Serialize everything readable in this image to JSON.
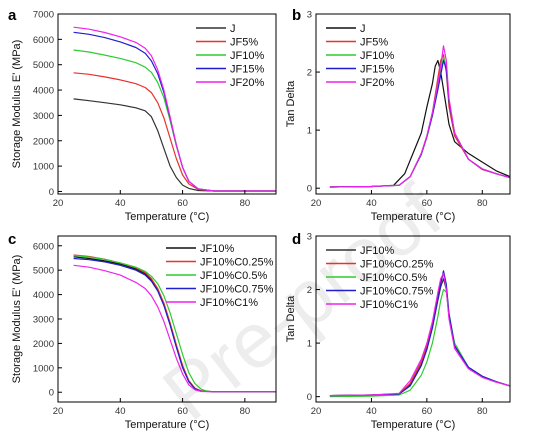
{
  "watermark": "Pre-proof",
  "chart_data": [
    {
      "type": "line",
      "panel": "a",
      "xlabel": "Temperature (°C)",
      "ylabel": "Storage Modulus E' (MPa)",
      "xlim": [
        20,
        90
      ],
      "ylim": [
        -100,
        7000
      ],
      "xticks": [
        20,
        40,
        60,
        80
      ],
      "yticks": [
        0,
        1000,
        2000,
        3000,
        4000,
        5000,
        6000,
        7000
      ],
      "ytick_labels": [
        "0",
        "1000",
        "2000",
        "3000",
        "4000",
        "5000",
        "6000",
        "7000"
      ],
      "legend_position": "top-right",
      "series": [
        {
          "name": "J",
          "color": "#333333",
          "x": [
            25,
            30,
            35,
            40,
            45,
            48,
            50,
            52,
            54,
            56,
            58,
            60,
            62,
            65,
            70,
            80,
            90
          ],
          "y": [
            3650,
            3580,
            3500,
            3420,
            3300,
            3180,
            2950,
            2400,
            1700,
            1000,
            550,
            250,
            120,
            40,
            20,
            20,
            20
          ]
        },
        {
          "name": "JF5%",
          "color": "#e8322a",
          "x": [
            25,
            30,
            35,
            40,
            45,
            48,
            50,
            52,
            54,
            56,
            58,
            60,
            62,
            65,
            70,
            80,
            90
          ],
          "y": [
            4680,
            4620,
            4520,
            4400,
            4250,
            4100,
            3900,
            3500,
            2900,
            2100,
            1300,
            650,
            300,
            80,
            20,
            20,
            20
          ]
        },
        {
          "name": "JF10%",
          "color": "#2ecc2e",
          "x": [
            25,
            30,
            35,
            40,
            45,
            48,
            50,
            52,
            54,
            56,
            58,
            60,
            62,
            65,
            70,
            80,
            90
          ],
          "y": [
            5580,
            5500,
            5380,
            5250,
            5080,
            4900,
            4700,
            4300,
            3700,
            2800,
            1800,
            950,
            400,
            100,
            20,
            20,
            20
          ]
        },
        {
          "name": "JF15%",
          "color": "#1f1fcc",
          "x": [
            25,
            30,
            35,
            40,
            45,
            48,
            50,
            52,
            54,
            56,
            58,
            60,
            62,
            65,
            70,
            80,
            90
          ],
          "y": [
            6280,
            6200,
            6070,
            5900,
            5680,
            5450,
            5150,
            4650,
            3900,
            2900,
            1850,
            950,
            400,
            100,
            20,
            20,
            20
          ]
        },
        {
          "name": "JF20%",
          "color": "#ee22ee",
          "x": [
            25,
            30,
            35,
            40,
            45,
            48,
            50,
            52,
            54,
            56,
            58,
            60,
            62,
            65,
            70,
            80,
            90
          ],
          "y": [
            6480,
            6400,
            6270,
            6100,
            5880,
            5650,
            5350,
            4800,
            4000,
            2950,
            1850,
            950,
            400,
            100,
            20,
            20,
            20
          ]
        }
      ]
    },
    {
      "type": "line",
      "panel": "b",
      "xlabel": "Temperature (°C)",
      "ylabel": "Tan Delta",
      "xlim": [
        20,
        90
      ],
      "ylim": [
        -0.1,
        3.0
      ],
      "xticks": [
        20,
        40,
        60,
        80
      ],
      "yticks": [
        0,
        1,
        2,
        3
      ],
      "ytick_labels": [
        "0",
        "1",
        "2",
        "3"
      ],
      "legend_position": "top-left",
      "series": [
        {
          "name": "J",
          "color": "#111111",
          "x": [
            25,
            40,
            48,
            52,
            55,
            58,
            60,
            62,
            63,
            64,
            65,
            66,
            68,
            70,
            75,
            80,
            85,
            90
          ],
          "y": [
            0.02,
            0.03,
            0.05,
            0.25,
            0.6,
            0.95,
            1.4,
            1.8,
            2.1,
            2.2,
            2.0,
            1.7,
            1.1,
            0.8,
            0.6,
            0.45,
            0.3,
            0.2
          ]
        },
        {
          "name": "JF5%",
          "color": "#e8322a",
          "x": [
            25,
            40,
            50,
            54,
            58,
            60,
            62,
            64,
            65,
            66,
            67,
            68,
            70,
            75,
            80,
            85,
            90
          ],
          "y": [
            0.02,
            0.03,
            0.05,
            0.2,
            0.6,
            0.9,
            1.3,
            1.9,
            2.2,
            2.3,
            2.0,
            1.4,
            0.9,
            0.5,
            0.32,
            0.25,
            0.18
          ]
        },
        {
          "name": "JF10%",
          "color": "#2ecc2e",
          "x": [
            25,
            40,
            50,
            54,
            58,
            60,
            62,
            64,
            65,
            66,
            67,
            68,
            70,
            75,
            80,
            85,
            90
          ],
          "y": [
            0.02,
            0.03,
            0.05,
            0.2,
            0.6,
            0.9,
            1.3,
            1.8,
            2.0,
            2.25,
            2.1,
            1.5,
            0.95,
            0.5,
            0.33,
            0.25,
            0.18
          ]
        },
        {
          "name": "JF15%",
          "color": "#1f1fcc",
          "x": [
            25,
            40,
            50,
            54,
            58,
            60,
            62,
            64,
            65,
            66,
            67,
            68,
            70,
            75,
            80,
            85,
            90
          ],
          "y": [
            0.02,
            0.03,
            0.05,
            0.2,
            0.58,
            0.88,
            1.25,
            1.7,
            1.95,
            2.2,
            2.05,
            1.5,
            0.95,
            0.5,
            0.33,
            0.25,
            0.18
          ]
        },
        {
          "name": "JF20%",
          "color": "#ee22ee",
          "x": [
            25,
            40,
            50,
            54,
            58,
            60,
            62,
            64,
            65,
            66,
            67,
            68,
            70,
            75,
            80,
            85,
            90
          ],
          "y": [
            0.02,
            0.03,
            0.05,
            0.2,
            0.6,
            0.9,
            1.3,
            1.8,
            2.1,
            2.45,
            2.2,
            1.55,
            0.95,
            0.5,
            0.33,
            0.25,
            0.18
          ]
        }
      ]
    },
    {
      "type": "line",
      "panel": "c",
      "xlabel": "Temperature (°C)",
      "ylabel": "Storage Modulus E' (MPa)",
      "xlim": [
        20,
        90
      ],
      "ylim": [
        -400,
        6400
      ],
      "xticks": [
        20,
        40,
        60,
        80
      ],
      "yticks": [
        0,
        1000,
        2000,
        3000,
        4000,
        5000,
        6000
      ],
      "ytick_labels": [
        "0",
        "1000",
        "2000",
        "3000",
        "4000",
        "5000",
        "6000"
      ],
      "legend_position": "top-right",
      "series": [
        {
          "name": "JF10%",
          "color": "#111111",
          "x": [
            25,
            30,
            35,
            40,
            45,
            48,
            50,
            52,
            54,
            56,
            58,
            60,
            62,
            64,
            66,
            70,
            80,
            90
          ],
          "y": [
            5550,
            5480,
            5380,
            5250,
            5050,
            4850,
            4600,
            4200,
            3600,
            2800,
            1900,
            1050,
            450,
            150,
            50,
            20,
            20,
            20
          ]
        },
        {
          "name": "JF10%C0.25%",
          "color": "#e8322a",
          "x": [
            25,
            30,
            35,
            40,
            45,
            48,
            50,
            52,
            54,
            56,
            58,
            60,
            62,
            64,
            66,
            70,
            80,
            90
          ],
          "y": [
            5620,
            5560,
            5450,
            5300,
            5100,
            4900,
            4650,
            4250,
            3650,
            2850,
            1950,
            1100,
            480,
            160,
            50,
            20,
            20,
            20
          ]
        },
        {
          "name": "JF10%C0.5%",
          "color": "#2ecc2e",
          "x": [
            25,
            30,
            35,
            40,
            45,
            48,
            50,
            52,
            54,
            56,
            58,
            60,
            62,
            64,
            66,
            68,
            70,
            80,
            90
          ],
          "y": [
            5600,
            5540,
            5440,
            5300,
            5120,
            4950,
            4750,
            4450,
            3950,
            3250,
            2400,
            1550,
            800,
            350,
            120,
            40,
            20,
            20,
            20
          ]
        },
        {
          "name": "JF10%C0.75%",
          "color": "#1f1fcc",
          "x": [
            25,
            30,
            35,
            40,
            45,
            48,
            50,
            52,
            54,
            56,
            58,
            60,
            62,
            64,
            66,
            70,
            80,
            90
          ],
          "y": [
            5480,
            5430,
            5340,
            5200,
            5000,
            4800,
            4550,
            4150,
            3550,
            2750,
            1850,
            1000,
            430,
            140,
            40,
            20,
            20,
            20
          ]
        },
        {
          "name": "JF10%C1%",
          "color": "#ee22ee",
          "x": [
            25,
            30,
            35,
            40,
            45,
            48,
            50,
            52,
            54,
            56,
            58,
            60,
            62,
            64,
            66,
            70,
            80,
            90
          ],
          "y": [
            5200,
            5120,
            4980,
            4800,
            4500,
            4250,
            3950,
            3500,
            2900,
            2150,
            1400,
            750,
            300,
            100,
            30,
            20,
            20,
            20
          ]
        }
      ]
    },
    {
      "type": "line",
      "panel": "d",
      "xlabel": "Temperature (°C)",
      "ylabel": "Tan Delta",
      "xlim": [
        20,
        90
      ],
      "ylim": [
        -0.1,
        3.0
      ],
      "xticks": [
        20,
        40,
        60,
        80
      ],
      "yticks": [
        0,
        1,
        2,
        3
      ],
      "ytick_labels": [
        "0",
        "1",
        "2",
        "3"
      ],
      "legend_position": "top-left",
      "series": [
        {
          "name": "JF10%",
          "color": "#333333",
          "x": [
            25,
            40,
            50,
            54,
            58,
            60,
            62,
            64,
            65,
            66,
            67,
            68,
            70,
            75,
            80,
            85,
            90
          ],
          "y": [
            0.02,
            0.03,
            0.05,
            0.22,
            0.6,
            0.9,
            1.3,
            1.8,
            2.05,
            2.2,
            2.0,
            1.5,
            0.95,
            0.55,
            0.38,
            0.28,
            0.2
          ]
        },
        {
          "name": "JF10%C0.25%",
          "color": "#e8322a",
          "x": [
            25,
            40,
            50,
            54,
            58,
            60,
            62,
            64,
            65,
            66,
            67,
            68,
            70,
            75,
            80,
            85,
            90
          ],
          "y": [
            0.02,
            0.03,
            0.05,
            0.25,
            0.65,
            0.95,
            1.35,
            1.9,
            2.15,
            2.3,
            2.05,
            1.5,
            0.95,
            0.55,
            0.38,
            0.28,
            0.2
          ]
        },
        {
          "name": "JF10%C0.5%",
          "color": "#2ecc2e",
          "x": [
            25,
            40,
            50,
            54,
            58,
            60,
            62,
            64,
            65,
            66,
            67,
            68,
            70,
            75,
            80,
            85,
            90
          ],
          "y": [
            0.0,
            0.01,
            0.03,
            0.12,
            0.4,
            0.65,
            1.0,
            1.5,
            1.8,
            2.0,
            1.95,
            1.55,
            1.0,
            0.55,
            0.38,
            0.28,
            0.2
          ]
        },
        {
          "name": "JF10%C0.75%",
          "color": "#1f1fcc",
          "x": [
            25,
            40,
            50,
            54,
            58,
            60,
            62,
            64,
            65,
            66,
            67,
            68,
            70,
            75,
            80,
            85,
            90
          ],
          "y": [
            0.02,
            0.03,
            0.05,
            0.2,
            0.58,
            0.88,
            1.28,
            1.82,
            2.1,
            2.35,
            2.1,
            1.55,
            0.95,
            0.55,
            0.38,
            0.28,
            0.2
          ]
        },
        {
          "name": "JF10%C1%",
          "color": "#ee22ee",
          "x": [
            25,
            40,
            50,
            54,
            58,
            60,
            62,
            64,
            65,
            66,
            67,
            68,
            70,
            75,
            80,
            85,
            90
          ],
          "y": [
            0.02,
            0.03,
            0.06,
            0.3,
            0.7,
            1.0,
            1.4,
            1.95,
            2.2,
            2.3,
            2.0,
            1.45,
            0.9,
            0.52,
            0.36,
            0.27,
            0.2
          ]
        }
      ]
    }
  ]
}
